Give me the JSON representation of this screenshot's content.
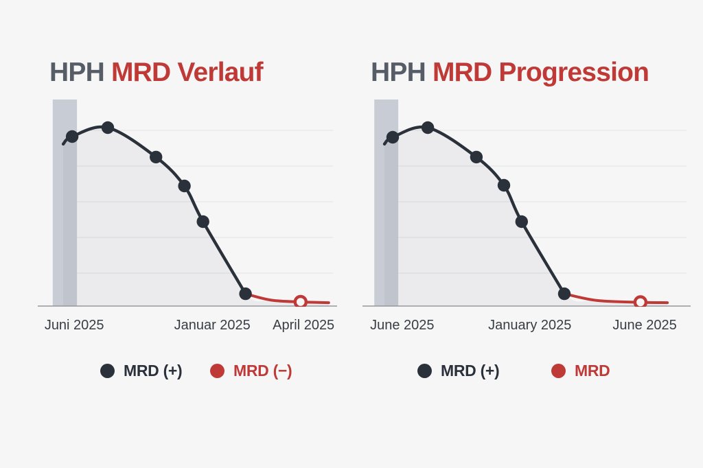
{
  "page": {
    "background": "#f6f6f7"
  },
  "colors": {
    "positive": "#2b313a",
    "negative": "#bf3a37",
    "title_prefix": "#575d66",
    "title_main": "#bf3a37",
    "band": "#c8cdd5",
    "gridline": "#e4e5e8",
    "baseline": "#95979b",
    "tick_text": "#383d44",
    "area_fill": "rgba(43,49,58,0.05)",
    "open_marker_fill": "#f6f6f7"
  },
  "chart_data": [
    {
      "type": "line",
      "title": {
        "prefix": "HPH",
        "main": "MRD Verlauf"
      },
      "x_ticks": [
        {
          "label": "Juni 2025",
          "pos": 0.122
        },
        {
          "label": "Januar 2025",
          "pos": 0.583
        },
        {
          "label": "April 2025",
          "pos": 0.888
        }
      ],
      "ylim": [
        0,
        1.05
      ],
      "grid": true,
      "highlight_band": {
        "x0": 0.05,
        "x1": 0.131
      },
      "series": [
        {
          "name": "MRD (+)",
          "color_key": "positive",
          "marker": "filled",
          "dots_from_index": 1,
          "points": [
            {
              "x": 0.085,
              "y": 0.908
            },
            {
              "x": 0.115,
              "y": 0.95
            },
            {
              "x": 0.234,
              "y": 1.0
            },
            {
              "x": 0.395,
              "y": 0.835
            },
            {
              "x": 0.49,
              "y": 0.673
            },
            {
              "x": 0.552,
              "y": 0.473
            },
            {
              "x": 0.694,
              "y": 0.069
            }
          ]
        },
        {
          "name": "MRD (−)",
          "color_key": "negative",
          "marker": "open_end",
          "open_point": {
            "x": 0.878,
            "y": 0.023
          },
          "points": [
            {
              "x": 0.694,
              "y": 0.069
            },
            {
              "x": 0.78,
              "y": 0.033
            },
            {
              "x": 0.878,
              "y": 0.023
            },
            {
              "x": 0.972,
              "y": 0.019
            }
          ]
        }
      ],
      "legend": [
        {
          "label": "MRD (+)",
          "color_key": "positive"
        },
        {
          "label": "MRD (−)",
          "color_key": "negative"
        }
      ]
    },
    {
      "type": "line",
      "title": {
        "prefix": "HPH",
        "main": "MRD Progression"
      },
      "x_ticks": [
        {
          "label": "June 2025",
          "pos": 0.121
        },
        {
          "label": "January 2025",
          "pos": 0.51
        },
        {
          "label": "June 2025",
          "pos": 0.86
        }
      ],
      "ylim": [
        0,
        1.05
      ],
      "grid": true,
      "highlight_band": {
        "x0": 0.036,
        "x1": 0.109
      },
      "series": [
        {
          "name": "MRD (+)",
          "color_key": "positive",
          "marker": "filled",
          "dots_from_index": 1,
          "points": [
            {
              "x": 0.067,
              "y": 0.908
            },
            {
              "x": 0.092,
              "y": 0.946
            },
            {
              "x": 0.199,
              "y": 1.0
            },
            {
              "x": 0.347,
              "y": 0.835
            },
            {
              "x": 0.431,
              "y": 0.677
            },
            {
              "x": 0.485,
              "y": 0.473
            },
            {
              "x": 0.615,
              "y": 0.069
            }
          ]
        },
        {
          "name": "MRD",
          "color_key": "negative",
          "marker": "open_end",
          "open_point": {
            "x": 0.847,
            "y": 0.021
          },
          "points": [
            {
              "x": 0.615,
              "y": 0.069
            },
            {
              "x": 0.715,
              "y": 0.031
            },
            {
              "x": 0.847,
              "y": 0.021
            },
            {
              "x": 0.929,
              "y": 0.019
            }
          ]
        }
      ],
      "legend": [
        {
          "label": "MRD (+)",
          "color_key": "positive"
        },
        {
          "label": "MRD",
          "color_key": "negative"
        }
      ]
    }
  ]
}
